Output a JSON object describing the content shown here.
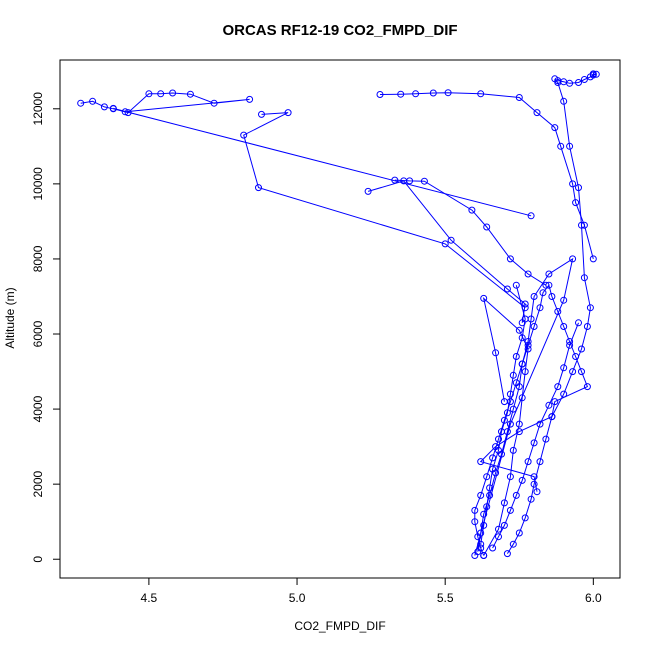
{
  "chart_data": {
    "type": "line",
    "title": "ORCAS RF12-19 CO2_FMPD_DIF",
    "xlabel": "CO2_FMPD_DIF",
    "ylabel": "Altitude (m)",
    "xlim": [
      4.2,
      6.09
    ],
    "ylim": [
      -500,
      13300
    ],
    "xticks": [
      4.5,
      5.0,
      5.5,
      6.0
    ],
    "xtick_labels": [
      "4.5",
      "5.0",
      "5.5",
      "6.0"
    ],
    "yticks": [
      0,
      2000,
      4000,
      6000,
      8000,
      10000,
      12000
    ],
    "ytick_labels": [
      "0",
      "2000",
      "4000",
      "6000",
      "8000",
      "10000",
      "12000"
    ],
    "grid": false,
    "markers": "open-circle",
    "color": "#0000ff",
    "series": [
      {
        "x": [
          5.63,
          5.62,
          5.61,
          5.6,
          5.6,
          5.62,
          5.64,
          5.66,
          5.68,
          5.7,
          5.72,
          5.74,
          5.76,
          5.78,
          5.8,
          5.82,
          5.83,
          5.85,
          5.86,
          5.88,
          5.9,
          5.92,
          5.94,
          5.96,
          5.98,
          5.87,
          5.86,
          5.75,
          5.67,
          5.62,
          5.8,
          5.81
        ],
        "y": [
          100,
          300,
          600,
          1000,
          1300,
          1700,
          2200,
          2700,
          3200,
          3700,
          4200,
          4700,
          5200,
          5700,
          6200,
          6700,
          7100,
          7300,
          7000,
          6600,
          6200,
          5800,
          5400,
          5000,
          4600,
          4200,
          3800,
          3400,
          3000,
          2600,
          2200,
          1800
        ]
      },
      {
        "x": [
          5.61,
          5.62,
          5.63,
          5.65,
          5.67,
          5.69,
          5.71,
          5.73,
          5.75,
          5.76,
          5.78,
          5.79,
          5.8,
          5.85,
          5.93,
          5.9,
          5.72,
          5.6
        ],
        "y": [
          200,
          700,
          1200,
          1700,
          2300,
          2800,
          3400,
          4000,
          4600,
          5200,
          5800,
          6400,
          7000,
          7600,
          8000,
          6900,
          3600,
          100
        ]
      },
      {
        "x": [
          5.71,
          5.73,
          5.75,
          5.77,
          5.79,
          5.8,
          5.82,
          5.84,
          5.86,
          5.9,
          5.93,
          5.96,
          5.98,
          5.99,
          5.97,
          5.96,
          5.95,
          5.92,
          5.9,
          5.88,
          5.87
        ],
        "y": [
          150,
          400,
          700,
          1100,
          1600,
          2000,
          2600,
          3200,
          3800,
          4400,
          5000,
          5600,
          6200,
          6700,
          7500,
          8900,
          9900,
          11000,
          12200,
          12700,
          12800
        ]
      },
      {
        "x": [
          5.88,
          5.9,
          5.92,
          5.95,
          5.97,
          5.99,
          6.0,
          6.01,
          6.0
        ],
        "y": [
          12750,
          12720,
          12680,
          12700,
          12780,
          12850,
          12900,
          12920,
          12930
        ]
      },
      {
        "x": [
          4.27,
          4.31,
          4.35,
          4.38,
          4.43,
          4.5,
          4.54,
          4.58,
          4.64,
          4.72,
          4.84,
          4.42,
          4.38,
          5.79
        ],
        "y": [
          12150,
          12200,
          12050,
          12000,
          11900,
          12400,
          12400,
          12420,
          12390,
          12150,
          12250,
          11920,
          12010,
          9150
        ]
      },
      {
        "x": [
          4.88,
          4.97,
          4.82,
          4.87,
          5.5,
          5.77
        ],
        "y": [
          11850,
          11900,
          11300,
          9900,
          8400,
          6700
        ]
      },
      {
        "x": [
          5.28,
          5.35,
          5.4,
          5.46,
          5.51,
          5.62,
          5.75,
          5.81,
          5.87,
          5.89,
          5.93,
          5.94,
          5.97,
          6.0
        ],
        "y": [
          12380,
          12390,
          12400,
          12420,
          12430,
          12400,
          12300,
          11900,
          11500,
          11000,
          10000,
          9500,
          8900,
          8000
        ]
      },
      {
        "x": [
          5.33,
          5.38,
          5.43,
          5.59,
          5.64,
          5.72,
          5.78,
          5.84
        ],
        "y": [
          10100,
          10080,
          10070,
          9300,
          8850,
          8000,
          7600,
          7300
        ]
      },
      {
        "x": [
          5.24,
          5.36,
          5.52,
          5.71,
          5.77,
          5.76
        ],
        "y": [
          9800,
          10080,
          8500,
          7200,
          6800,
          6300
        ]
      },
      {
        "x": [
          5.63,
          5.68,
          5.7,
          5.72,
          5.73,
          5.75,
          5.76,
          5.77,
          5.78,
          5.75,
          5.63,
          5.67,
          5.7
        ],
        "y": [
          100,
          800,
          1500,
          2200,
          2900,
          3600,
          4300,
          5000,
          5600,
          6100,
          6950,
          5500,
          4200
        ]
      },
      {
        "x": [
          5.62,
          5.63,
          5.64,
          5.65,
          5.66,
          5.68,
          5.69,
          5.71,
          5.72,
          5.73,
          5.74,
          5.76,
          5.77,
          5.74
        ],
        "y": [
          400,
          900,
          1400,
          1900,
          2400,
          2900,
          3400,
          3900,
          4400,
          4900,
          5400,
          5900,
          6400,
          7300
        ]
      },
      {
        "x": [
          5.66,
          5.68,
          5.7,
          5.72,
          5.74,
          5.76,
          5.78,
          5.8,
          5.82,
          5.85,
          5.88,
          5.9,
          5.92,
          5.95
        ],
        "y": [
          300,
          600,
          900,
          1300,
          1700,
          2100,
          2600,
          3100,
          3600,
          4100,
          4600,
          5100,
          5700,
          6300
        ]
      }
    ]
  }
}
